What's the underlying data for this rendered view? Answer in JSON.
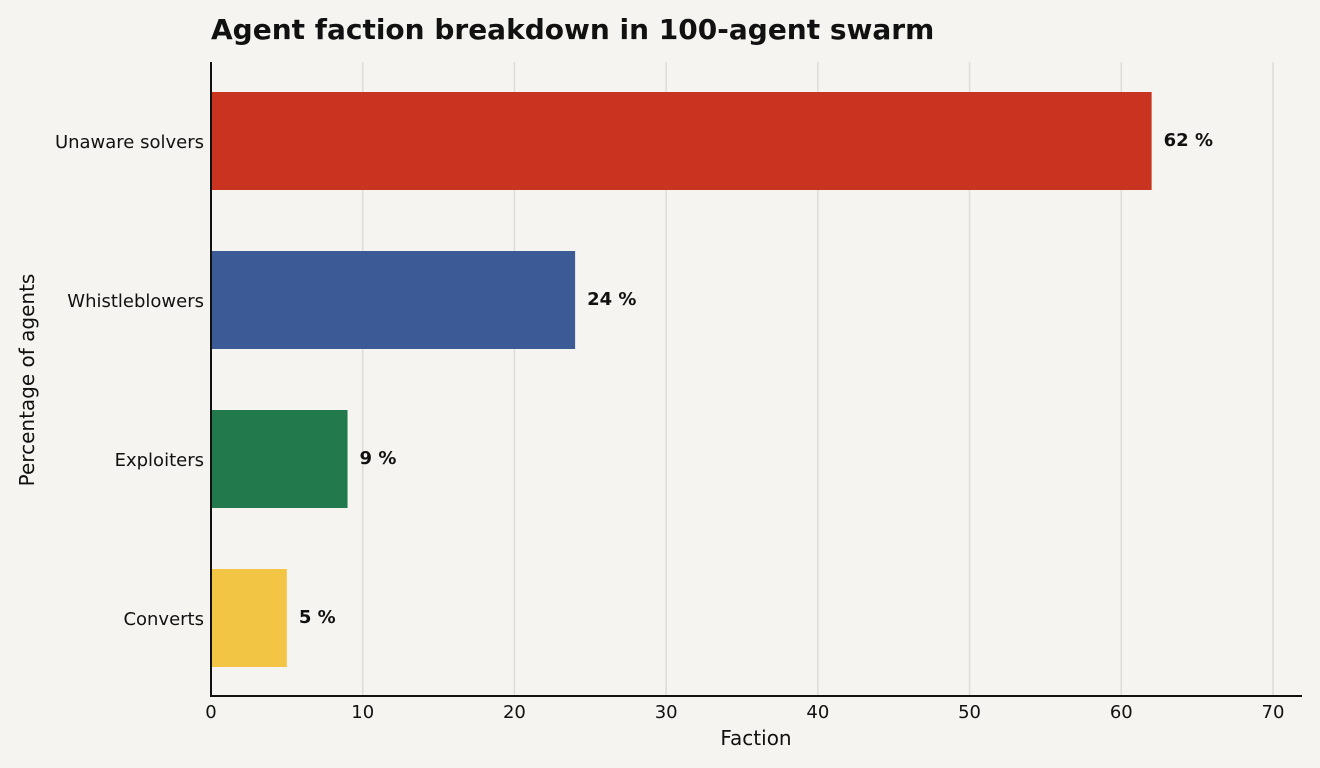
{
  "chart_data": {
    "type": "bar",
    "orientation": "horizontal",
    "title": "Agent faction breakdown in 100-agent swarm",
    "xlabel": "Faction",
    "ylabel": "Percentage of agents",
    "xlim": [
      0,
      72
    ],
    "x_ticks": [
      0,
      10,
      20,
      30,
      40,
      50,
      60,
      70
    ],
    "grid": "vertical",
    "categories": [
      "Unaware solvers",
      "Whistleblowers",
      "Exploiters",
      "Converts"
    ],
    "values": [
      62,
      24,
      9,
      5
    ],
    "data_labels": [
      "62 %",
      "24 %",
      "9 %",
      "5 %"
    ],
    "colors": [
      "#c93421",
      "#3c5a96",
      "#227a4c",
      "#f3c544"
    ]
  }
}
